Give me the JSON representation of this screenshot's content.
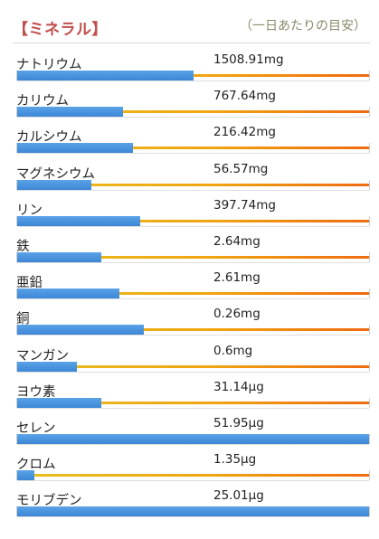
{
  "header": {
    "title": "【ミネラル】",
    "subtitle": "（一日あたりの目安）"
  },
  "colors": {
    "title": "#c0504d",
    "fill": "#3c86d6",
    "track_start": "#e8c020",
    "track_end": "#f06a10"
  },
  "minerals": [
    {
      "name": "ナトリウム",
      "value": "1508.91mg",
      "fill": 0.5
    },
    {
      "name": "カリウム",
      "value": "767.64mg",
      "fill": 0.3
    },
    {
      "name": "カルシウム",
      "value": "216.42mg",
      "fill": 0.33
    },
    {
      "name": "マグネシウム",
      "value": "56.57mg",
      "fill": 0.21
    },
    {
      "name": "リン",
      "value": "397.74mg",
      "fill": 0.35
    },
    {
      "name": "鉄",
      "value": "2.64mg",
      "fill": 0.24
    },
    {
      "name": "亜鉛",
      "value": "2.61mg",
      "fill": 0.29
    },
    {
      "name": "銅",
      "value": "0.26mg",
      "fill": 0.36
    },
    {
      "name": "マンガン",
      "value": "0.6mg",
      "fill": 0.17
    },
    {
      "name": "ヨウ素",
      "value": "31.14μg",
      "fill": 0.24
    },
    {
      "name": "セレン",
      "value": "51.95μg",
      "fill": 1.0
    },
    {
      "name": "クロム",
      "value": "1.35μg",
      "fill": 0.05
    },
    {
      "name": "モリブデン",
      "value": "25.01μg",
      "fill": 1.0
    }
  ]
}
